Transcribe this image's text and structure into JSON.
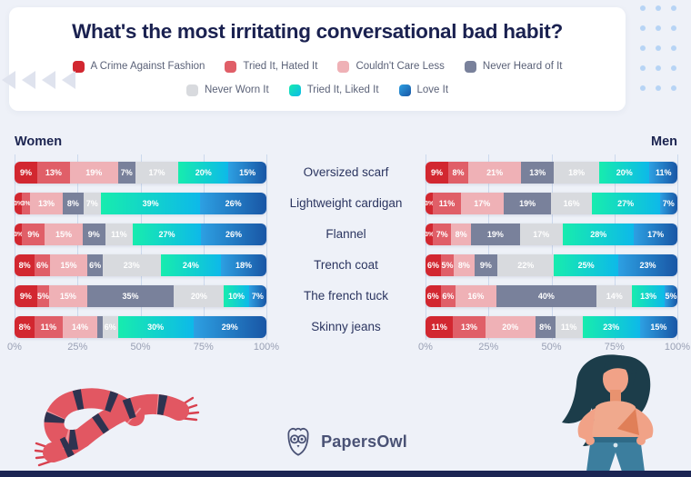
{
  "page": {
    "title": "What's the most irritating conversational bad habit?",
    "brand": "PapersOwl"
  },
  "legend": {
    "rows": [
      [
        0,
        1,
        2,
        3
      ],
      [
        4,
        5,
        6
      ]
    ],
    "items": [
      {
        "label": "A Crime Against Fashion",
        "color": "#d22730"
      },
      {
        "label": "Tried It, Hated It",
        "color": "#e05f68"
      },
      {
        "label": "Couldn't Care Less",
        "color": "#efb1b6"
      },
      {
        "label": "Never Heard of It",
        "color": "#79819b"
      },
      {
        "label": "Never Worn It",
        "color": "#d8dade"
      },
      {
        "label": "Tried It, Liked It",
        "color": "#12d7c0",
        "gradient": [
          "#17ecae",
          "#0db9e9"
        ]
      },
      {
        "label": "Love It",
        "color": "#1f74c4",
        "gradient": [
          "#2da0e2",
          "#1956a5"
        ]
      }
    ]
  },
  "chart_data": [
    {
      "type": "bar",
      "subtype": "horizontal-stacked",
      "title": "Women",
      "categories": [
        "Oversized scarf",
        "Lightweight cardigan",
        "Flannel",
        "Trench coat",
        "The french tuck",
        "Skinny jeans"
      ],
      "series_names": [
        "A Crime Against Fashion",
        "Tried It, Hated It",
        "Couldn't Care Less",
        "Never Heard of It",
        "Never Worn It",
        "Tried It, Liked It",
        "Love It"
      ],
      "rows": [
        [
          9,
          13,
          19,
          7,
          17,
          20,
          15
        ],
        [
          3,
          3,
          13,
          8,
          7,
          39,
          26
        ],
        [
          3,
          9,
          15,
          9,
          11,
          27,
          26
        ],
        [
          8,
          6,
          15,
          6,
          23,
          24,
          18
        ],
        [
          9,
          5,
          15,
          35,
          20,
          10,
          7
        ],
        [
          8,
          11,
          14,
          2,
          6,
          30,
          29
        ]
      ],
      "x_ticks": [
        "0%",
        "25%",
        "50%",
        "75%",
        "100%"
      ],
      "xlim": [
        0,
        100
      ],
      "grid": true,
      "label_min_value": 3
    },
    {
      "type": "bar",
      "subtype": "horizontal-stacked",
      "title": "Men",
      "categories": [
        "Oversized scarf",
        "Lightweight cardigan",
        "Flannel",
        "Trench coat",
        "The french tuck",
        "Skinny jeans"
      ],
      "series_names": [
        "A Crime Against Fashion",
        "Tried It, Hated It",
        "Couldn't Care Less",
        "Never Heard of It",
        "Never Worn It",
        "Tried It, Liked It",
        "Love It"
      ],
      "rows": [
        [
          9,
          8,
          21,
          13,
          18,
          20,
          11
        ],
        [
          3,
          11,
          17,
          19,
          16,
          27,
          7
        ],
        [
          3,
          7,
          8,
          19,
          17,
          28,
          17
        ],
        [
          6,
          5,
          8,
          9,
          22,
          25,
          23
        ],
        [
          6,
          6,
          16,
          40,
          14,
          13,
          5
        ],
        [
          11,
          13,
          20,
          8,
          11,
          23,
          15
        ]
      ],
      "x_ticks": [
        "0%",
        "25%",
        "50%",
        "75%",
        "100%"
      ],
      "xlim": [
        0,
        100
      ],
      "grid": true,
      "label_min_value": 3
    }
  ]
}
